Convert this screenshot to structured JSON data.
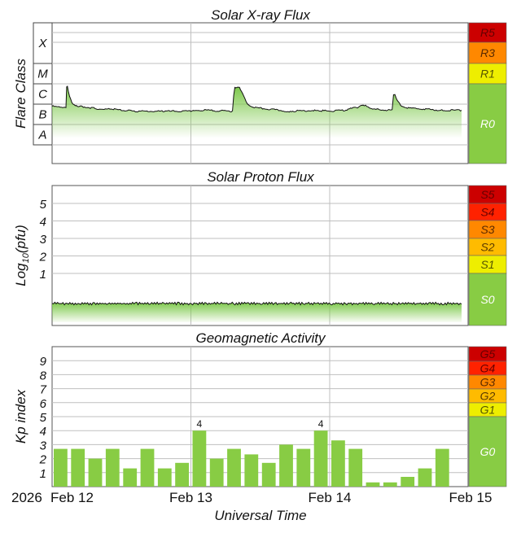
{
  "chart_data": [
    {
      "type": "area",
      "title": "Solar X-ray Flux",
      "ylabel": "Flare Class",
      "classes": [
        "X",
        "M",
        "C",
        "B",
        "A"
      ],
      "scale": [
        {
          "label": "R5",
          "color": "#cc0000",
          "text_color": "#660000"
        },
        {
          "label": "R3",
          "color": "#ff8800",
          "text_color": "#5a2a00"
        },
        {
          "label": "R1",
          "color": "#eeee00",
          "text_color": "#555500"
        },
        {
          "label": "R0",
          "color": "#88cc44",
          "text_color": "#ffffff"
        }
      ],
      "x_days": [
        0,
        0.05,
        0.1,
        0.11,
        0.2,
        0.3,
        0.35,
        0.4,
        0.5,
        0.6,
        0.8,
        1.0,
        1.1,
        1.3,
        1.35,
        1.38,
        1.5,
        1.7,
        1.9,
        2.0,
        2.1,
        2.2,
        2.25,
        2.3,
        2.45,
        2.47,
        2.6,
        2.8,
        2.95
      ],
      "flux_log": [
        -6.1,
        -6.15,
        -6.2,
        -5.15,
        -6.1,
        -6.2,
        -6.25,
        -6.2,
        -6.3,
        -6.35,
        -6.35,
        -6.35,
        -6.3,
        -6.35,
        -5.2,
        -5.6,
        -6.2,
        -6.35,
        -6.3,
        -6.35,
        -6.3,
        -6.15,
        -6.05,
        -6.25,
        -6.3,
        -5.55,
        -6.2,
        -6.3,
        -6.3
      ]
    },
    {
      "type": "area",
      "title": "Solar Proton Flux",
      "ylabel": "Log10(pfu)",
      "ylim": [
        -2,
        6
      ],
      "yticks": [
        "1",
        "2",
        "3",
        "4",
        "5"
      ],
      "scale": [
        {
          "label": "S5",
          "color": "#cc0000",
          "text_color": "#660000"
        },
        {
          "label": "S4",
          "color": "#ff2200",
          "text_color": "#660000"
        },
        {
          "label": "S3",
          "color": "#ff8800",
          "text_color": "#5a2a00"
        },
        {
          "label": "S2",
          "color": "#ffbb00",
          "text_color": "#5a3a00"
        },
        {
          "label": "S1",
          "color": "#eeee00",
          "text_color": "#555500"
        },
        {
          "label": "S0",
          "color": "#88cc44",
          "text_color": "#ffffff"
        }
      ],
      "level_log": -0.45
    },
    {
      "type": "bar",
      "title": "Geomagnetic Activity",
      "ylabel": "Kp index",
      "ylim": [
        0,
        10
      ],
      "yticks": [
        "1",
        "2",
        "3",
        "4",
        "5",
        "6",
        "7",
        "8",
        "9"
      ],
      "bar_interval_hours": 3,
      "values": [
        2.7,
        2.7,
        2.0,
        2.7,
        1.3,
        2.7,
        1.3,
        1.7,
        4.0,
        2.0,
        2.7,
        2.3,
        1.7,
        3.0,
        2.7,
        4.0,
        3.3,
        2.7,
        0.3,
        0.3,
        0.7,
        1.3,
        2.7
      ],
      "labels": [
        "",
        "",
        "",
        "",
        "",
        "",
        "",
        "",
        "4",
        "",
        "",
        "",
        "",
        "",
        "",
        "4",
        "",
        "",
        "",
        "",
        "",
        "",
        ""
      ],
      "scale": [
        {
          "label": "G5",
          "color": "#cc0000",
          "text_color": "#660000"
        },
        {
          "label": "G4",
          "color": "#ff2200",
          "text_color": "#660000"
        },
        {
          "label": "G3",
          "color": "#ff8800",
          "text_color": "#5a2a00"
        },
        {
          "label": "G2",
          "color": "#ffbb00",
          "text_color": "#5a3a00"
        },
        {
          "label": "G1",
          "color": "#eeee00",
          "text_color": "#555500"
        },
        {
          "label": "G0",
          "color": "#88cc44",
          "text_color": "#ffffff"
        }
      ]
    }
  ],
  "xaxis": {
    "label": "Universal Time",
    "year": "2026",
    "ticks": [
      "Feb 12",
      "Feb 13",
      "Feb 14",
      "Feb 15"
    ]
  }
}
